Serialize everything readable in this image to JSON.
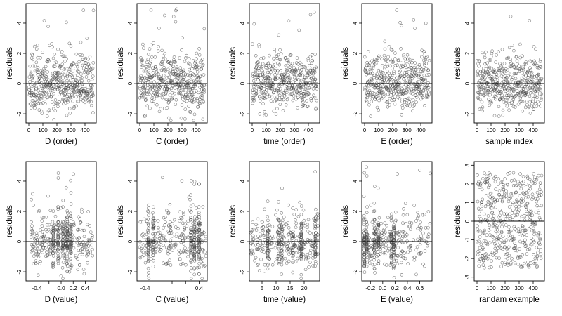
{
  "figure": {
    "ylabel": "residuals"
  },
  "chart_data": [
    {
      "type": "scatter",
      "xlabel": "D (order)",
      "ylabel": "residuals",
      "xlim": [
        -20,
        480
      ],
      "ylim": [
        -2.6,
        5.3
      ],
      "xticks": [
        0,
        100,
        200,
        300,
        400
      ],
      "yticks": [
        -2,
        0,
        2,
        4
      ],
      "hline": 0,
      "gen": {
        "kind": "index",
        "n": 460,
        "seed": 11
      }
    },
    {
      "type": "scatter",
      "xlabel": "C (order)",
      "ylabel": "residuals",
      "xlim": [
        -20,
        480
      ],
      "ylim": [
        -2.6,
        5.3
      ],
      "xticks": [
        0,
        100,
        200,
        300,
        400
      ],
      "yticks": [
        -2,
        0,
        2,
        4
      ],
      "hline": 0,
      "gen": {
        "kind": "index",
        "n": 460,
        "seed": 23
      }
    },
    {
      "type": "scatter",
      "xlabel": "time (order)",
      "ylabel": "residuals",
      "xlim": [
        -20,
        480
      ],
      "ylim": [
        -2.6,
        5.3
      ],
      "xticks": [
        0,
        100,
        200,
        300,
        400
      ],
      "yticks": [
        -2,
        0,
        2,
        4
      ],
      "hline": 0,
      "gen": {
        "kind": "index",
        "n": 460,
        "seed": 37
      }
    },
    {
      "type": "scatter",
      "xlabel": "E (order)",
      "ylabel": "residuals",
      "xlim": [
        -20,
        480
      ],
      "ylim": [
        -2.6,
        5.3
      ],
      "xticks": [
        0,
        100,
        200,
        300,
        400
      ],
      "yticks": [
        -2,
        0,
        2,
        4
      ],
      "hline": 0,
      "gen": {
        "kind": "index",
        "n": 460,
        "seed": 41
      }
    },
    {
      "type": "scatter",
      "xlabel": "sample index",
      "ylabel": "residuals",
      "xlim": [
        -20,
        480
      ],
      "ylim": [
        -2.6,
        5.3
      ],
      "xticks": [
        0,
        100,
        200,
        300,
        400
      ],
      "yticks": [
        -2,
        0,
        2,
        4
      ],
      "hline": 0,
      "gen": {
        "kind": "index",
        "n": 460,
        "seed": 53
      }
    },
    {
      "type": "scatter",
      "xlabel": "D (value)",
      "ylabel": "residuals",
      "xlim": [
        -0.58,
        0.58
      ],
      "ylim": [
        -2.6,
        5.3
      ],
      "xticks": [
        -0.4,
        -0.2,
        0.0,
        0.2,
        0.4
      ],
      "xticklabels": [
        "-0.4",
        "",
        "0.0",
        "0.2",
        "0.4"
      ],
      "yticks": [
        -2,
        0,
        2,
        4
      ],
      "hline": 0,
      "gen": {
        "kind": "value",
        "n": 460,
        "seed": 61,
        "range": [
          -0.5,
          0.52
        ],
        "clusters": [
          -0.13,
          -0.05,
          0.03,
          0.1,
          0.16
        ]
      }
    },
    {
      "type": "scatter",
      "xlabel": "C (value)",
      "ylabel": "residuals",
      "xlim": [
        -0.52,
        0.52
      ],
      "ylim": [
        -2.6,
        5.3
      ],
      "xticks": [
        -0.4,
        0.0,
        0.2,
        0.4
      ],
      "xticklabels": [
        "-0.4",
        "",
        "",
        "0.4"
      ],
      "yticks": [
        -2,
        0,
        2,
        4
      ],
      "hline": 0,
      "gen": {
        "kind": "value",
        "n": 460,
        "seed": 71,
        "range": [
          -0.48,
          0.5
        ],
        "clusters": [
          -0.35,
          -0.28,
          0.28,
          0.33,
          0.4
        ]
      }
    },
    {
      "type": "scatter",
      "xlabel": "time (value)",
      "ylabel": "residuals",
      "xlim": [
        0.5,
        25.5
      ],
      "ylim": [
        -2.6,
        5.3
      ],
      "xticks": [
        5,
        10,
        15,
        20
      ],
      "yticks": [
        -2,
        0,
        2,
        4
      ],
      "hline": 0,
      "gen": {
        "kind": "value",
        "n": 460,
        "seed": 83,
        "range": [
          1,
          25
        ],
        "clusters": [
          7,
          11,
          12,
          16,
          19,
          24
        ]
      }
    },
    {
      "type": "scatter",
      "xlabel": "E (value)",
      "ylabel": "residuals",
      "xlim": [
        -0.34,
        0.8
      ],
      "ylim": [
        -2.6,
        5.3
      ],
      "xticks": [
        -0.2,
        0.0,
        0.2,
        0.4,
        0.6
      ],
      "xticklabels": [
        "-0.2",
        "0.0",
        "0.2",
        "0.4",
        "0.6"
      ],
      "yticks": [
        -2,
        0,
        2,
        4
      ],
      "hline": 0,
      "gen": {
        "kind": "value",
        "n": 460,
        "seed": 97,
        "range": [
          -0.3,
          0.78
        ],
        "skew": 1.6,
        "clusters": [
          -0.3,
          -0.26,
          -0.13,
          -0.07,
          0.14,
          0.18
        ]
      }
    },
    {
      "type": "scatter",
      "xlabel": "randam example",
      "ylabel": "residuals",
      "xlim": [
        -20,
        480
      ],
      "ylim": [
        -3.2,
        3.2
      ],
      "xticks": [
        0,
        100,
        200,
        300,
        400
      ],
      "yticks": [
        -3,
        -2,
        -1,
        0,
        1,
        2,
        3
      ],
      "hline": 0,
      "gen": {
        "kind": "uniform",
        "n": 460,
        "seed": 101
      }
    }
  ]
}
